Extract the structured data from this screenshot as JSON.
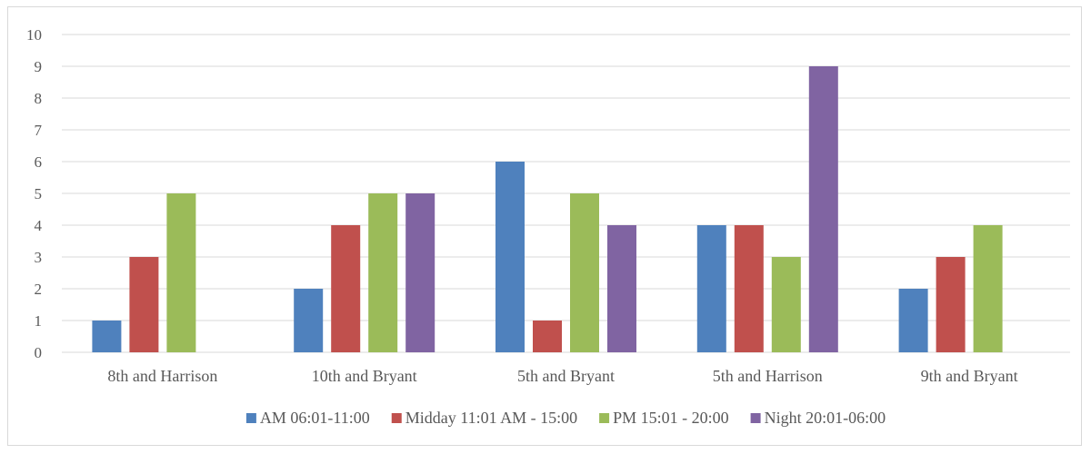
{
  "chart_data": {
    "type": "bar",
    "categories": [
      "8th and Harrison",
      "10th and Bryant",
      "5th and Bryant",
      "5th and Harrison",
      "9th and Bryant"
    ],
    "series": [
      {
        "name": "AM 06:01-11:00",
        "color": "#4f81bd",
        "values": [
          1,
          2,
          6,
          4,
          2
        ]
      },
      {
        "name": "Midday 11:01 AM - 15:00",
        "color": "#c0504d",
        "values": [
          3,
          4,
          1,
          4,
          3
        ]
      },
      {
        "name": "PM 15:01 - 20:00",
        "color": "#9bbb59",
        "values": [
          5,
          5,
          5,
          3,
          4
        ]
      },
      {
        "name": "Night 20:01-06:00",
        "color": "#8064a2",
        "values": [
          0,
          5,
          4,
          9,
          0
        ]
      }
    ],
    "ylim": [
      0,
      10
    ],
    "yticks": [
      0,
      1,
      2,
      3,
      4,
      5,
      6,
      7,
      8,
      9,
      10
    ],
    "grid": true,
    "legend_position": "bottom"
  }
}
